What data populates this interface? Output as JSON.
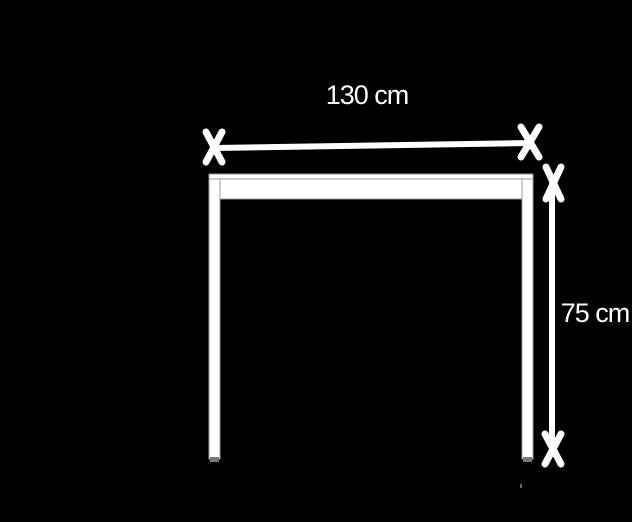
{
  "dimensions": {
    "width_label": "130 cm",
    "height_label": "75 cm"
  },
  "colors": {
    "background": "#000000",
    "lines": "#ffffff",
    "table_outline": "#9a9a9a"
  }
}
